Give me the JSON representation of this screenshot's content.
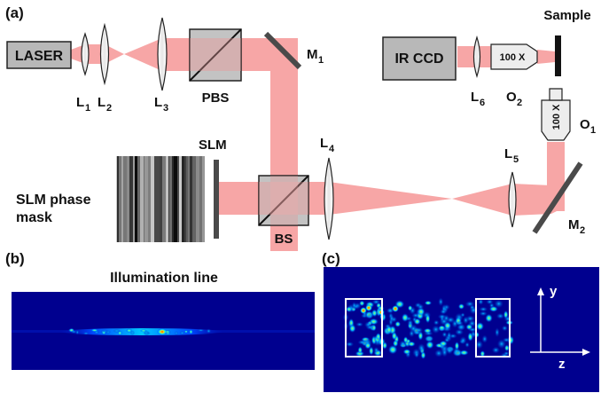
{
  "panels": {
    "a": "(a)",
    "b": "(b)",
    "c": "(c)"
  },
  "components": {
    "laser": "LASER",
    "ir_ccd": "IR CCD",
    "sample": "Sample",
    "pbs": "PBS",
    "bs": "BS",
    "slm": "SLM",
    "slm_mask_line1": "SLM phase",
    "slm_mask_line2": "mask",
    "objective_o2": "100 X",
    "objective_o1": "100 X"
  },
  "labels": {
    "L1": {
      "main": "L",
      "sub": "1"
    },
    "L2": {
      "main": "L",
      "sub": "2"
    },
    "L3": {
      "main": "L",
      "sub": "3"
    },
    "L4": {
      "main": "L",
      "sub": "4"
    },
    "L5": {
      "main": "L",
      "sub": "5"
    },
    "L6": {
      "main": "L",
      "sub": "6"
    },
    "M1": {
      "main": "M",
      "sub": "1"
    },
    "M2": {
      "main": "M",
      "sub": "2"
    },
    "O1": {
      "main": "O",
      "sub": "1"
    },
    "O2": {
      "main": "O",
      "sub": "2"
    }
  },
  "panel_b": {
    "title": "Illumination line"
  },
  "panel_c": {
    "axis_y": "y",
    "axis_z": "z"
  },
  "colors": {
    "beam": "#f7a6a6",
    "heatmap_background": "#00008f",
    "component_fill": "#b8b8b8",
    "mirror": "#4a4a4a"
  }
}
